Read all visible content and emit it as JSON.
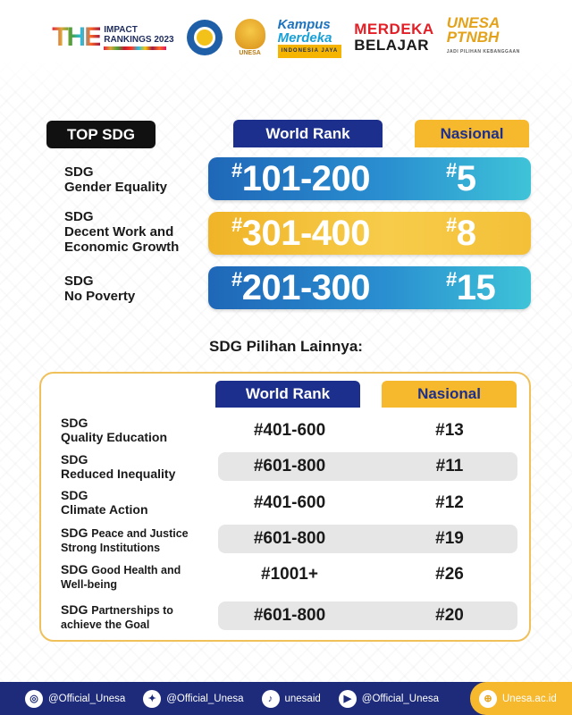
{
  "header": {
    "the_mark": "THE",
    "the_line1": "IMPACT",
    "the_line2": "RANKINGS 2023",
    "unesa_caption": "UNESA",
    "kampus_line1": "Kampus",
    "kampus_line2": "Merdeka",
    "kampus_line3": "INDONESIA JAYA",
    "merdeka_line1": "MERDEKA",
    "merdeka_line2": "BELAJAR",
    "ptnbh_line1": "UNESA",
    "ptnbh_line2": "PTNBH",
    "ptnbh_line3": "JADI PILIHAN KEBANGGAAN"
  },
  "top": {
    "label": "TOP SDG",
    "world_header": "World Rank",
    "nas_header": "Nasional",
    "rows": [
      {
        "l1": "SDG",
        "l2": "Gender Equality",
        "l3": "",
        "world": "101-200",
        "nas": "5",
        "color": "blue"
      },
      {
        "l1": "SDG",
        "l2": "Decent Work and",
        "l3": "Economic Growth",
        "world": "301-400",
        "nas": "8",
        "color": "gold"
      },
      {
        "l1": "SDG",
        "l2": "No Poverty",
        "l3": "",
        "world": "201-300",
        "nas": "15",
        "color": "blue"
      }
    ],
    "hash": "#"
  },
  "others": {
    "title": "SDG Pilihan Lainnya:",
    "world_header": "World Rank",
    "nas_header": "Nasional",
    "rows": [
      {
        "a": "SDG",
        "b": "Quality Education",
        "world": "#401-600",
        "nas": "#13"
      },
      {
        "a": "SDG",
        "b": "Reduced Inequality",
        "world": "#601-800",
        "nas": "#11"
      },
      {
        "a": "SDG",
        "b": "Climate Action",
        "world": "#401-600",
        "nas": "#12"
      },
      {
        "a": "SDG",
        "b": "Peace and Justice",
        "c": "Strong Institutions",
        "world": "#601-800",
        "nas": "#19"
      },
      {
        "a": "SDG",
        "b": "Good Health and",
        "c": "Well-being",
        "world": "#1001+",
        "nas": "#26"
      },
      {
        "a": "SDG",
        "b": "Partnerships to",
        "c": "achieve the Goal",
        "world": "#601-800",
        "nas": "#20"
      }
    ]
  },
  "footer": {
    "instagram": "@Official_Unesa",
    "twitter": "@Official_Unesa",
    "tiktok": "unesaid",
    "youtube": "@Official_Unesa",
    "website": "Unesa.ac.id"
  },
  "colors": {
    "navy": "#1d2f8c",
    "gold": "#f6b82d",
    "blue_bar": "#2a8fd0"
  }
}
